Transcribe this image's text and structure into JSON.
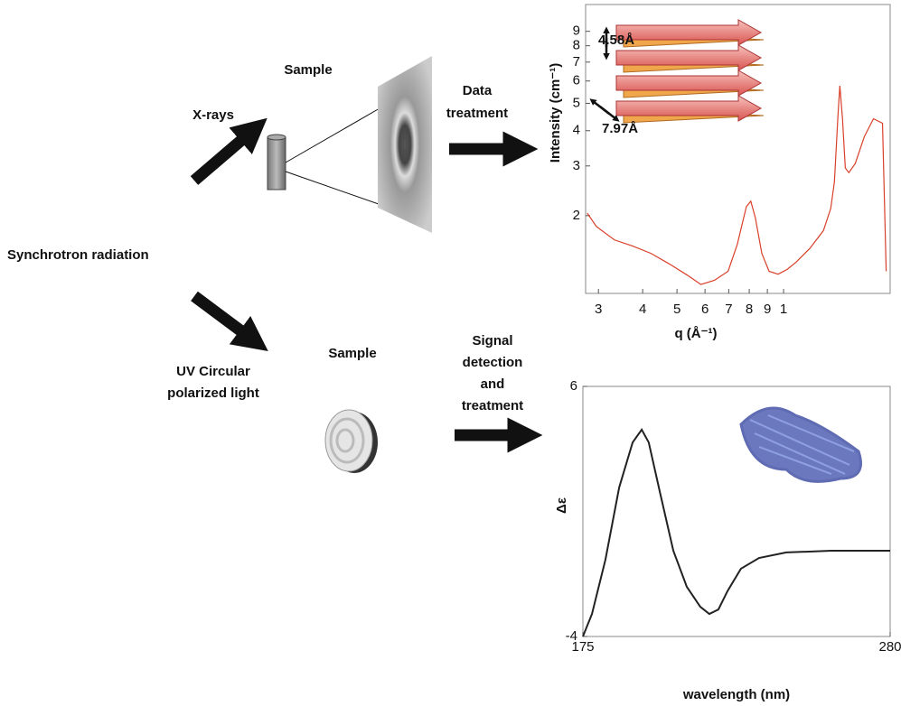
{
  "diagram": {
    "sample_top": "Sample",
    "xrays": "X-rays",
    "data_treatment": [
      "Data",
      "treatment"
    ],
    "synchrotron": "Synchrotron radiation",
    "sample_bottom": "Sample",
    "uv_light": [
      "UV Circular",
      "polarized light"
    ],
    "signal_treatment": [
      "Signal",
      "detection",
      "and",
      "treatment"
    ]
  },
  "chart_data": [
    {
      "type": "line",
      "xscale": "log",
      "yscale": "log",
      "xlabel": "q (Å⁻¹)",
      "ylabel": "Intensity (cm⁻¹)",
      "annotations": [
        "4.58Å",
        "7.97Å"
      ],
      "color": "#d9402a",
      "xlim": [
        0.0276,
        0.2
      ],
      "ylim": [
        1.06,
        11.2
      ],
      "xticks": [
        {
          "value": 0.03,
          "label": "3"
        },
        {
          "value": 0.04,
          "label": "4"
        },
        {
          "value": 0.05,
          "label": "5"
        },
        {
          "value": 0.06,
          "label": "6"
        },
        {
          "value": 0.07,
          "label": "7"
        },
        {
          "value": 0.08,
          "label": "8"
        },
        {
          "value": 0.09,
          "label": "9"
        },
        {
          "value": 0.1,
          "label": "1"
        }
      ],
      "yticks": [
        2,
        3,
        4,
        5,
        6,
        7,
        8,
        9
      ],
      "x": [
        0.0279,
        0.0296,
        0.0333,
        0.0375,
        0.0422,
        0.0475,
        0.0535,
        0.0584,
        0.0638,
        0.0697,
        0.074,
        0.0785,
        0.0808,
        0.0832,
        0.0868,
        0.091,
        0.0965,
        0.1024,
        0.1086,
        0.1186,
        0.1296,
        0.1359,
        0.1392,
        0.1425,
        0.1442,
        0.1467,
        0.1494,
        0.1529,
        0.1594,
        0.1691,
        0.1794,
        0.1903,
        0.1949
      ],
      "values": [
        2.04,
        1.83,
        1.64,
        1.56,
        1.47,
        1.35,
        1.23,
        1.14,
        1.18,
        1.27,
        1.58,
        2.15,
        2.25,
        1.97,
        1.47,
        1.27,
        1.24,
        1.29,
        1.37,
        1.53,
        1.77,
        2.12,
        2.64,
        4.57,
        5.77,
        4.41,
        2.95,
        2.84,
        3.06,
        3.81,
        4.41,
        4.25,
        1.27
      ]
    },
    {
      "type": "line",
      "xlabel": "wavelength (nm)",
      "ylabel": "Δε",
      "color": "#222222",
      "xlim": [
        175,
        280
      ],
      "ylim": [
        -4,
        6
      ],
      "xticks": [
        175,
        280
      ],
      "yticks": [
        6,
        -4
      ],
      "x": [
        175,
        178.1,
        182.7,
        187.4,
        192.0,
        195.1,
        197.5,
        201.3,
        205.9,
        210.5,
        215.1,
        218.2,
        221.3,
        224.4,
        229.0,
        235.2,
        244.5,
        259.9,
        280
      ],
      "values": [
        -4.0,
        -3.1,
        -0.93,
        1.96,
        3.76,
        4.27,
        3.76,
        1.78,
        -0.57,
        -2.01,
        -2.81,
        -3.1,
        -2.92,
        -2.19,
        -1.29,
        -0.86,
        -0.64,
        -0.57,
        -0.57
      ]
    }
  ]
}
